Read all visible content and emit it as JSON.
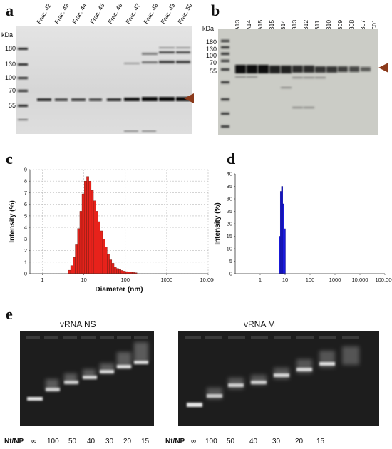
{
  "panels": {
    "a": {
      "letter": "a",
      "kda": "kDa",
      "lanes": [
        "Frac. 42",
        "Frac. 43",
        "Frac. 44",
        "Frac. 45",
        "Frac. 46",
        "Frac. 47",
        "Frac. 48",
        "Frac. 49",
        "Frac. 50"
      ],
      "markers": [
        "180",
        "130",
        "100",
        "70",
        "55"
      ]
    },
    "b": {
      "letter": "b",
      "kda": "kDa",
      "lanes": [
        "A13",
        "A14",
        "A15",
        "B15",
        "B14",
        "B13",
        "B12",
        "B11",
        "B10",
        "B09",
        "B08",
        "B07",
        "C01"
      ],
      "markers": [
        "180",
        "130",
        "100",
        "70",
        "55"
      ]
    },
    "c": {
      "letter": "c",
      "chart_data": {
        "type": "bar",
        "xlabel": "Diameter (nm)",
        "ylabel": "Intensity (%)",
        "x_scale": "log",
        "xlim": [
          0.5,
          10000
        ],
        "ylim": [
          0,
          9
        ],
        "xticks": [
          "1",
          "10",
          "100",
          "1000",
          "10,000"
        ],
        "yticks": [
          "0",
          "1",
          "2",
          "3",
          "4",
          "5",
          "6",
          "7",
          "8",
          "9"
        ],
        "grid": true,
        "series": [
          {
            "color": "#e8221b",
            "x": [
              4.5,
              5.1,
              5.8,
              6.6,
              7.5,
              8.5,
              9.6,
              10.9,
              12.4,
              14.1,
              16.0,
              18.2,
              20.7,
              23.5,
              26.7,
              30.3,
              34.4,
              39.1,
              44.4,
              50.4,
              57.2,
              65.0,
              73.8,
              83.8,
              95.2,
              108,
              123,
              140,
              159,
              180
            ],
            "values": [
              0.3,
              0.7,
              1.4,
              2.5,
              3.9,
              5.4,
              6.9,
              8.0,
              8.4,
              8.0,
              7.2,
              6.3,
              5.4,
              4.5,
              3.7,
              3.0,
              2.3,
              1.7,
              1.2,
              0.9,
              0.6,
              0.45,
              0.35,
              0.28,
              0.22,
              0.18,
              0.15,
              0.12,
              0.1,
              0.08
            ]
          }
        ]
      }
    },
    "d": {
      "letter": "d",
      "chart_data": {
        "type": "bar",
        "xlabel": "",
        "ylabel": "Intensity (%)",
        "x_scale": "log",
        "xlim": [
          0.1,
          100000
        ],
        "ylim": [
          0,
          40
        ],
        "xticks": [
          "1",
          "10",
          "100",
          "1000",
          "10,000",
          "100,000"
        ],
        "yticks": [
          "0",
          "5",
          "10",
          "15",
          "20",
          "25",
          "30",
          "35",
          "40"
        ],
        "grid": false,
        "series": [
          {
            "color": "#1a1adb",
            "x": [
              6.0,
              6.8,
              7.6,
              8.6,
              9.7
            ],
            "values": [
              15,
              33,
              35,
              28,
              18
            ]
          }
        ]
      }
    },
    "e": {
      "letter": "e",
      "gels": [
        {
          "title": "vRNA NS"
        },
        {
          "title": "vRNA M"
        }
      ],
      "row_label": "Nt/NP",
      "ratios": [
        "∞",
        "100",
        "50",
        "40",
        "30",
        "20",
        "15"
      ]
    }
  }
}
